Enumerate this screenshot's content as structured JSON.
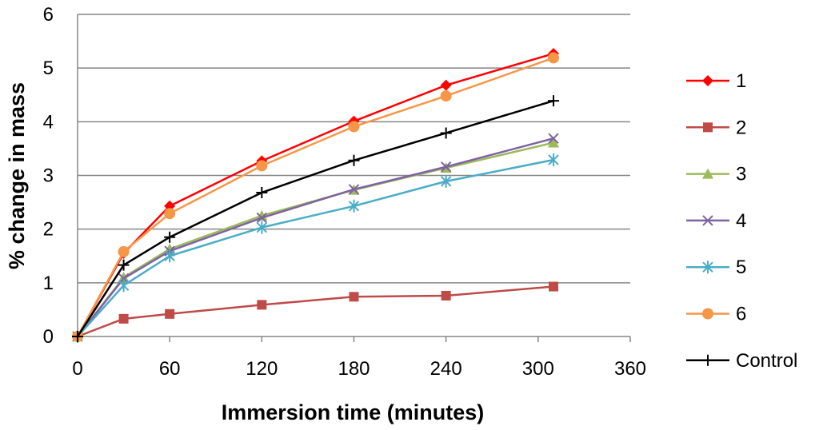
{
  "chart_data": {
    "type": "line",
    "title": "",
    "xlabel": "Immersion time (minutes)",
    "ylabel": "% change in mass",
    "xlim": [
      0,
      360
    ],
    "ylim": [
      0,
      6
    ],
    "x_ticks": [
      "0",
      "60",
      "120",
      "180",
      "240",
      "300",
      "360"
    ],
    "y_ticks": [
      "0",
      "1",
      "2",
      "3",
      "4",
      "5",
      "6"
    ],
    "grid": "horizontal",
    "legend_position": "right",
    "x": [
      0,
      30,
      60,
      120,
      180,
      240,
      310
    ],
    "series": [
      {
        "name": "1",
        "color": "#ff0000",
        "marker": "diamond",
        "values": [
          0,
          1.55,
          2.43,
          3.27,
          4.01,
          4.68,
          5.27
        ]
      },
      {
        "name": "2",
        "color": "#be4b48",
        "marker": "square",
        "values": [
          0,
          0.33,
          0.42,
          0.59,
          0.74,
          0.76,
          0.93
        ]
      },
      {
        "name": "3",
        "color": "#9bbb59",
        "marker": "triangle",
        "values": [
          0,
          1.1,
          1.63,
          2.25,
          2.73,
          3.14,
          3.61
        ]
      },
      {
        "name": "4",
        "color": "#7f62a3",
        "marker": "x",
        "values": [
          0,
          1.08,
          1.59,
          2.21,
          2.74,
          3.16,
          3.69
        ]
      },
      {
        "name": "5",
        "color": "#4aacc6",
        "marker": "asterisk",
        "values": [
          0,
          0.95,
          1.5,
          2.03,
          2.43,
          2.89,
          3.29
        ]
      },
      {
        "name": "6",
        "color": "#f79646",
        "marker": "circle",
        "values": [
          0,
          1.58,
          2.29,
          3.18,
          3.91,
          4.48,
          5.19
        ]
      },
      {
        "name": "Control",
        "color": "#000000",
        "marker": "plus",
        "values": [
          0,
          1.33,
          1.85,
          2.68,
          3.28,
          3.79,
          4.39
        ]
      }
    ]
  }
}
